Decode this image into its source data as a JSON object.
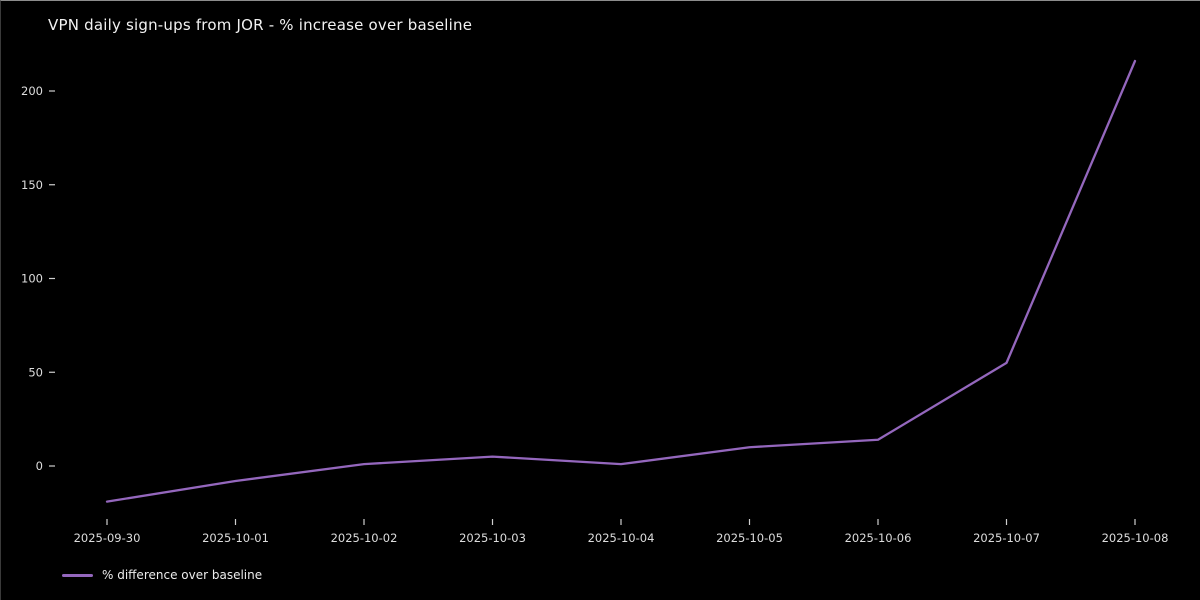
{
  "window": {
    "background_color": "#000000"
  },
  "title": "VPN daily sign-ups from JOR - % increase over baseline",
  "legend": {
    "label": "% difference over baseline",
    "position": "lower-left"
  },
  "colors": {
    "background": "#000000",
    "title_text": "#f2f2f2",
    "tick_text": "#dddddd",
    "tick_mark": "#cfcfcf",
    "line": "#9467bd"
  },
  "chart_data": {
    "type": "line",
    "title": "VPN daily sign-ups from JOR - % increase over baseline",
    "x": [
      "2025-09-30",
      "2025-10-01",
      "2025-10-02",
      "2025-10-03",
      "2025-10-04",
      "2025-10-05",
      "2025-10-06",
      "2025-10-07",
      "2025-10-08"
    ],
    "series": [
      {
        "name": "% difference over baseline",
        "values": [
          -19,
          -8,
          1,
          5,
          1,
          10,
          14,
          55,
          216
        ],
        "color": "#9467bd"
      }
    ],
    "xlabel": "",
    "ylabel": "",
    "yticks": [
      0,
      50,
      100,
      150,
      200
    ],
    "ylim": [
      -30,
      225
    ],
    "grid": false,
    "legend_position": "lower-left"
  }
}
